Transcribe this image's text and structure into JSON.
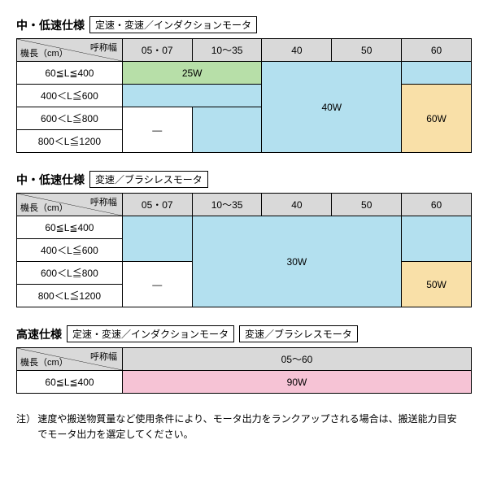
{
  "colors": {
    "header_bg": "#d9d9d9",
    "green": "#b7dfa8",
    "blue": "#b3e0ef",
    "tan": "#f9e0a8",
    "pink": "#f6c3d5",
    "white": "#ffffff",
    "border": "#000000",
    "text": "#000000"
  },
  "diagonal_header": {
    "top": "呼称幅",
    "bottom": "機長（cm）"
  },
  "sections": [
    {
      "title": "中・低速仕様",
      "subtitles": [
        "定速・変速／インダクションモータ"
      ],
      "type": "matrix",
      "col_headers": [
        "05・07",
        "10～35",
        "40",
        "50",
        "60"
      ],
      "row_headers": [
        "60≦L≦400",
        "400＜L≦600",
        "600＜L≦800",
        "800＜L≦1200"
      ],
      "regions": [
        {
          "label": "25W",
          "color": "green",
          "r0": 0,
          "c0": 0,
          "r1": 0,
          "c1": 1
        },
        {
          "label": "40W",
          "color": "blue",
          "r0": 0,
          "c0": 2,
          "r1": 3,
          "c1": 3
        },
        {
          "label": "",
          "color": "blue",
          "r0": 1,
          "c0": 0,
          "r1": 1,
          "c1": 1
        },
        {
          "label": "",
          "color": "blue",
          "r0": 0,
          "c0": 4,
          "r1": 0,
          "c1": 4
        },
        {
          "label": "60W",
          "color": "tan",
          "r0": 1,
          "c0": 4,
          "r1": 3,
          "c1": 4
        },
        {
          "label": "—",
          "color": "white",
          "r0": 2,
          "c0": 0,
          "r1": 3,
          "c1": 0
        },
        {
          "label": "",
          "color": "blue",
          "r0": 2,
          "c0": 1,
          "r1": 3,
          "c1": 1
        }
      ]
    },
    {
      "title": "中・低速仕様",
      "subtitles": [
        "変速／ブラシレスモータ"
      ],
      "type": "matrix",
      "col_headers": [
        "05・07",
        "10～35",
        "40",
        "50",
        "60"
      ],
      "row_headers": [
        "60≦L≦400",
        "400＜L≦600",
        "600＜L≦800",
        "800＜L≦1200"
      ],
      "regions": [
        {
          "label": "",
          "color": "blue",
          "r0": 0,
          "c0": 0,
          "r1": 1,
          "c1": 0
        },
        {
          "label": "30W",
          "color": "blue",
          "r0": 0,
          "c0": 1,
          "r1": 3,
          "c1": 3
        },
        {
          "label": "",
          "color": "blue",
          "r0": 0,
          "c0": 4,
          "r1": 1,
          "c1": 4
        },
        {
          "label": "50W",
          "color": "tan",
          "r0": 2,
          "c0": 4,
          "r1": 3,
          "c1": 4
        },
        {
          "label": "—",
          "color": "white",
          "r0": 2,
          "c0": 0,
          "r1": 3,
          "c1": 0
        }
      ]
    },
    {
      "title": "高速仕様",
      "subtitles": [
        "定速・変速／インダクションモータ",
        "変速／ブラシレスモータ"
      ],
      "type": "simple",
      "col_header_span": "05～60",
      "row_header": "60≦L≦400",
      "cell": {
        "label": "90W",
        "color": "pink"
      }
    }
  ],
  "note": {
    "label": "注）",
    "text": "速度や搬送物質量など使用条件により、モータ出力をランクアップされる場合は、搬送能力目安でモータ出力を選定してください。"
  }
}
